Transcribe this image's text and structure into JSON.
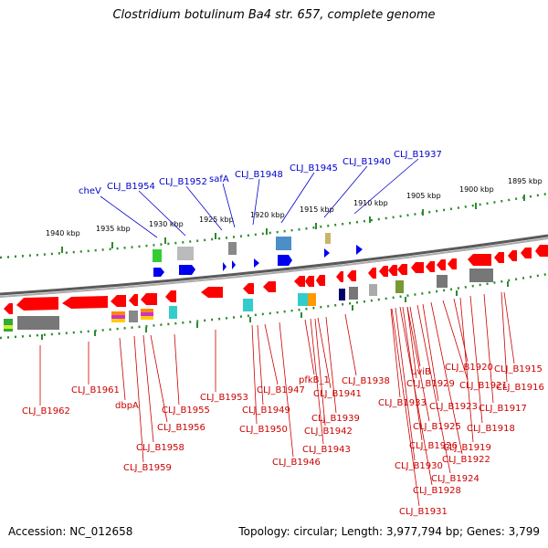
{
  "title": "Clostridium botulinum Ba4 str. 657, complete genome",
  "accession": "Accession: NC_012658",
  "topology": "Topology: circular; Length: 3,977,794 bp; Genes: 3,799",
  "colors": {
    "forward_label": "#0000cc",
    "reverse_label": "#cc0000",
    "gene": "#ff0000",
    "forward_gene": "#0000ee",
    "tick": "#228b22",
    "backbone": "#777777"
  },
  "scale_labels": [
    "1940 kbp",
    "1935 kbp",
    "1930 kbp",
    "1925 kbp",
    "1920 kbp",
    "1915 kbp",
    "1910 kbp",
    "1905 kbp",
    "1900 kbp",
    "1895 kbp"
  ],
  "forward_genes": [
    "cheV",
    "CLJ_B1954",
    "CLJ_B1952",
    "safA",
    "CLJ_B1948",
    "CLJ_B1945",
    "CLJ_B1940",
    "CLJ_B1937"
  ],
  "reverse_genes": [
    "CLJ_B1962",
    "CLJ_B1961",
    "dbpA",
    "CLJ_B1959",
    "CLJ_B1958",
    "CLJ_B1956",
    "CLJ_B1955",
    "CLJ_B1953",
    "CLJ_B1950",
    "CLJ_B1949",
    "CLJ_B1947",
    "CLJ_B1946",
    "pfkB_1",
    "CLJ_B1943",
    "CLJ_B1942",
    "CLJ_B1941",
    "CLJ_B1939",
    "CLJ_B1938",
    "CLJ_B1933",
    "uviB",
    "CLJ_B1929",
    "CLJ_B1931",
    "CLJ_B1930",
    "CLJ_B1928",
    "CLJ_B1926",
    "CLJ_B1925",
    "CLJ_B1924",
    "CLJ_B1923",
    "CLJ_B1922",
    "CLJ_B1921",
    "CLJ_B1920",
    "CLJ_B1919",
    "CLJ_B1918",
    "CLJ_B1917",
    "CLJ_B1916",
    "CLJ_B1915"
  ]
}
